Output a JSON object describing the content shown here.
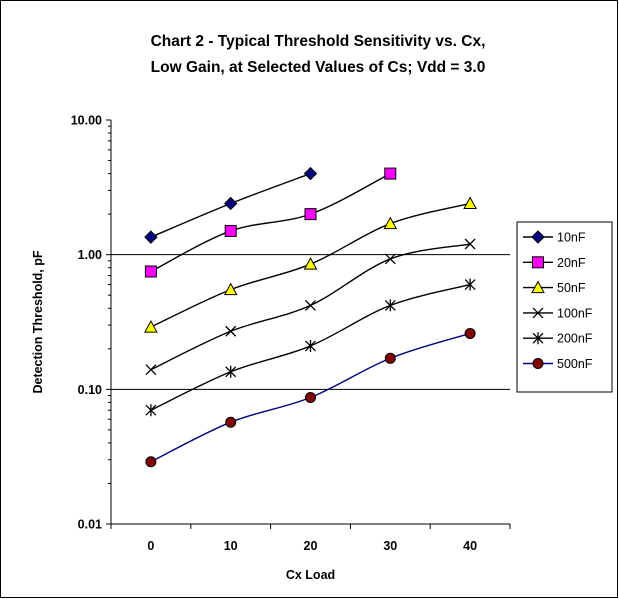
{
  "chart_data": {
    "type": "line",
    "title": [
      "Chart 2 - Typical Threshold Sensitivity vs. Cx,",
      "Low Gain, at Selected Values of Cs; Vdd = 3.0"
    ],
    "xlabel": "Cx Load",
    "ylabel": "Detection Threshold, pF",
    "y_scale": "log",
    "ylim": [
      0.01,
      10
    ],
    "xlim": [
      -5,
      45
    ],
    "x_ticks": [
      0,
      10,
      20,
      30,
      40
    ],
    "x_tick_labels": [
      "0",
      "10",
      "20",
      "30",
      "40"
    ],
    "y_ticks": [
      0.01,
      0.1,
      1,
      10
    ],
    "y_tick_labels": [
      "0.01",
      "0.10",
      "1.00",
      "10.00"
    ],
    "gridlines": "horizontal major",
    "legend_position": "right",
    "series": [
      {
        "name": "10nF",
        "marker": "diamond",
        "line_color": "#000000",
        "marker_color": "#000080",
        "x": [
          0,
          10,
          20
        ],
        "values": [
          1.35,
          2.4,
          4.0
        ]
      },
      {
        "name": "20nF",
        "marker": "square",
        "line_color": "#000000",
        "marker_color": "#ff00ff",
        "x": [
          0,
          10,
          20,
          30
        ],
        "values": [
          0.75,
          1.5,
          2.0,
          4.0
        ]
      },
      {
        "name": "50nF",
        "marker": "triangle",
        "line_color": "#000000",
        "marker_color": "#ffff00",
        "x": [
          0,
          10,
          20,
          30,
          40
        ],
        "values": [
          0.29,
          0.55,
          0.85,
          1.7,
          2.4
        ]
      },
      {
        "name": "100nF",
        "marker": "x",
        "line_color": "#000000",
        "marker_color": "#000000",
        "x": [
          0,
          10,
          20,
          30,
          40
        ],
        "values": [
          0.14,
          0.27,
          0.42,
          0.93,
          1.2
        ]
      },
      {
        "name": "200nF",
        "marker": "star",
        "line_color": "#000000",
        "marker_color": "#000000",
        "x": [
          0,
          10,
          20,
          30,
          40
        ],
        "values": [
          0.07,
          0.135,
          0.21,
          0.42,
          0.6
        ]
      },
      {
        "name": "500nF",
        "marker": "circle",
        "line_color": "#000080",
        "marker_color": "#800000",
        "x": [
          0,
          10,
          20,
          30,
          40
        ],
        "values": [
          0.029,
          0.057,
          0.087,
          0.17,
          0.26
        ]
      }
    ]
  }
}
